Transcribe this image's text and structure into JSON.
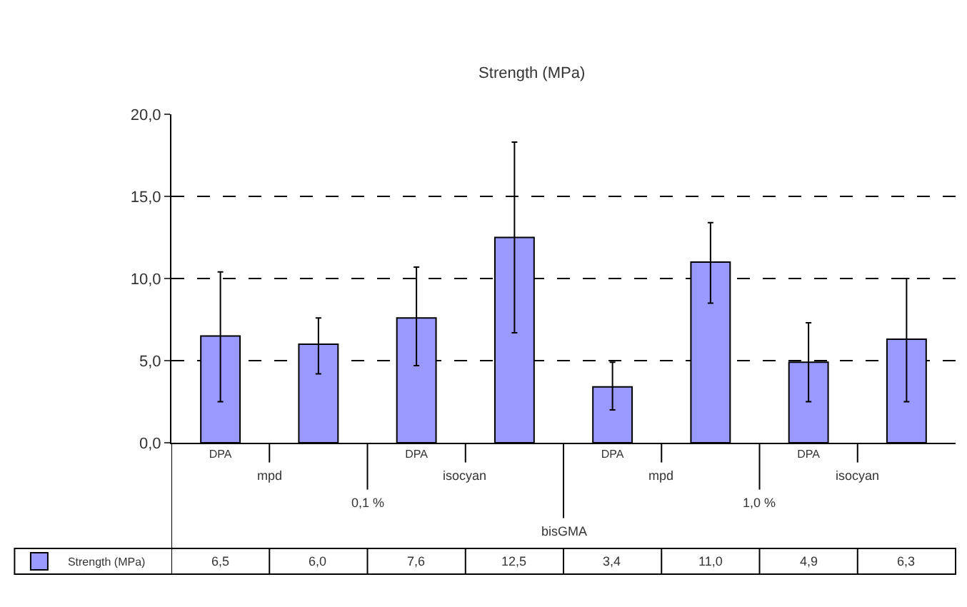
{
  "chart_data": {
    "type": "bar",
    "title": "Strength (MPa)",
    "categories": [
      "DPA",
      null,
      "DPA",
      null,
      "DPA",
      null,
      "DPA",
      null
    ],
    "series": [
      {
        "name": "Strength (MPa)",
        "color": "#9999ff",
        "values": [
          6.5,
          6.0,
          7.6,
          12.5,
          3.4,
          11.0,
          4.9,
          6.3
        ],
        "errors": [
          [
            2.5,
            10.4
          ],
          [
            4.2,
            7.6
          ],
          [
            4.7,
            10.7
          ],
          [
            6.7,
            18.3
          ],
          [
            2.0,
            4.9
          ],
          [
            8.5,
            13.4
          ],
          [
            2.5,
            7.3
          ],
          [
            2.5,
            10.0
          ]
        ],
        "value_labels": [
          "6,5",
          "6,0",
          "7,6",
          "12,5",
          "3,4",
          "11,0",
          "4,9",
          "6,3"
        ]
      }
    ],
    "annotations": [
      "mpd",
      "isocyan",
      "mpd",
      "isocyan",
      "0,1 %",
      "1,0 %",
      "bisGMA"
    ],
    "ylim": [
      0,
      20
    ],
    "yticks": [
      {
        "value": 0,
        "label": "0,0"
      },
      {
        "value": 5,
        "label": "5,0"
      },
      {
        "value": 10,
        "label": "10,0"
      },
      {
        "value": 15,
        "label": "15,0"
      },
      {
        "value": 20,
        "label": "20,0"
      }
    ],
    "grid": "y",
    "legend": "bottom left"
  }
}
